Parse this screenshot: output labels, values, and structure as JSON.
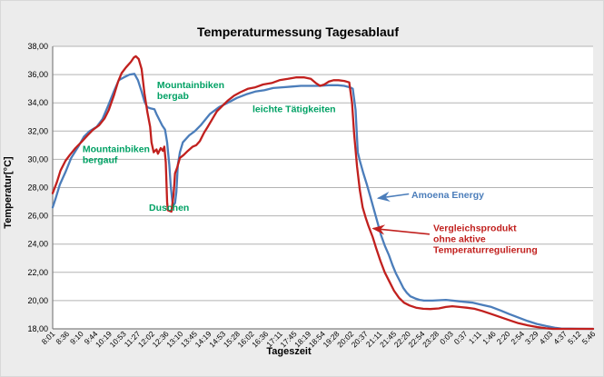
{
  "chart_data": {
    "type": "line",
    "title": "Temperaturmessung Tagesablauf",
    "xlabel": "Tageszeit",
    "ylabel": "Temperatur[°C]",
    "grid": true,
    "legend_position": "inline-annotations",
    "ylim": [
      18,
      38
    ],
    "ytick_step": 2,
    "ytick_labels": [
      "38,00",
      "36,00",
      "34,00",
      "32,00",
      "30,00",
      "28,00",
      "26,00",
      "24,00",
      "22,00",
      "20,00",
      "18,00"
    ],
    "xtick_labels": [
      "8:01",
      "8:36",
      "9:10",
      "9:44",
      "10:19",
      "10:53",
      "11:27",
      "12:02",
      "12:36",
      "13:10",
      "13:45",
      "14:19",
      "14:53",
      "15:28",
      "16:02",
      "16:36",
      "17:11",
      "17:45",
      "18:19",
      "18:54",
      "19:28",
      "20:02",
      "20:37",
      "21:11",
      "21:45",
      "22:20",
      "22:54",
      "23:28",
      "0:03",
      "0:37",
      "1:11",
      "1:46",
      "2:20",
      "2:54",
      "3:29",
      "4:03",
      "4:37",
      "5:12",
      "5:46"
    ],
    "colors": {
      "series_blue": "#4b7dba",
      "series_red": "#c1201e",
      "annotation_green": "#00a164",
      "gridline": "#b3b3b3",
      "axis": "#808080",
      "plot_background": "#ffffff",
      "figure_background": "#ececec"
    },
    "series": [
      {
        "name": "Amoena Energy",
        "color": "#4b7dba",
        "points": [
          [
            0,
            26.6
          ],
          [
            0.2,
            27.2
          ],
          [
            0.5,
            28.2
          ],
          [
            0.9,
            29.1
          ],
          [
            1.3,
            30.1
          ],
          [
            1.8,
            30.9
          ],
          [
            2.2,
            31.6
          ],
          [
            2.6,
            32
          ],
          [
            3.1,
            32.3
          ],
          [
            3.5,
            32.85
          ],
          [
            3.9,
            33.8
          ],
          [
            4.3,
            34.8
          ],
          [
            4.65,
            35.6
          ],
          [
            5,
            35.8
          ],
          [
            5.4,
            36
          ],
          [
            5.75,
            36.05
          ],
          [
            6,
            35.6
          ],
          [
            6.25,
            34.8
          ],
          [
            6.45,
            34.1
          ],
          [
            6.65,
            33.7
          ],
          [
            6.9,
            33.6
          ],
          [
            7.15,
            33.55
          ],
          [
            7.3,
            33.2
          ],
          [
            7.55,
            32.7
          ],
          [
            7.7,
            32.4
          ],
          [
            7.9,
            32.1
          ],
          [
            8.05,
            31.2
          ],
          [
            8.2,
            29.6
          ],
          [
            8.3,
            28.1
          ],
          [
            8.42,
            27
          ],
          [
            8.5,
            26.75
          ],
          [
            8.6,
            26.9
          ],
          [
            8.7,
            27.7
          ],
          [
            8.8,
            29.6
          ],
          [
            8.95,
            30.5
          ],
          [
            9.15,
            31.2
          ],
          [
            9.6,
            31.7
          ],
          [
            10,
            32
          ],
          [
            10.4,
            32.4
          ],
          [
            11.05,
            33.2
          ],
          [
            11.7,
            33.7
          ],
          [
            12.3,
            34
          ],
          [
            12.95,
            34.35
          ],
          [
            13.6,
            34.6
          ],
          [
            14.25,
            34.8
          ],
          [
            14.9,
            34.9
          ],
          [
            15.5,
            35.05
          ],
          [
            16.15,
            35.1
          ],
          [
            16.8,
            35.15
          ],
          [
            17.45,
            35.2
          ],
          [
            18.1,
            35.2
          ],
          [
            18.75,
            35.2
          ],
          [
            19.4,
            35.25
          ],
          [
            20.05,
            35.25
          ],
          [
            20.5,
            35.2
          ],
          [
            20.9,
            35.1
          ],
          [
            21.1,
            35
          ],
          [
            21.3,
            33.5
          ],
          [
            21.45,
            30.5
          ],
          [
            21.6,
            29.9
          ],
          [
            21.85,
            29
          ],
          [
            22.1,
            28.2
          ],
          [
            22.35,
            27.3
          ],
          [
            22.6,
            26.4
          ],
          [
            22.85,
            25.5
          ],
          [
            23.1,
            24.6
          ],
          [
            23.35,
            23.9
          ],
          [
            23.65,
            23.2
          ],
          [
            23.9,
            22.5
          ],
          [
            24.15,
            21.9
          ],
          [
            24.4,
            21.4
          ],
          [
            24.65,
            20.9
          ],
          [
            24.9,
            20.55
          ],
          [
            25.15,
            20.3
          ],
          [
            25.5,
            20.15
          ],
          [
            25.8,
            20.05
          ],
          [
            26.1,
            20
          ],
          [
            26.7,
            20
          ],
          [
            27.65,
            20.05
          ],
          [
            28.6,
            19.95
          ],
          [
            29.55,
            19.85
          ],
          [
            30.2,
            19.7
          ],
          [
            30.85,
            19.55
          ],
          [
            31.5,
            19.3
          ],
          [
            32.1,
            19.05
          ],
          [
            32.75,
            18.8
          ],
          [
            33.4,
            18.55
          ],
          [
            34.05,
            18.35
          ],
          [
            34.7,
            18.2
          ],
          [
            35.3,
            18.08
          ],
          [
            35.75,
            18.02
          ],
          [
            38,
            18
          ]
        ]
      },
      {
        "name": "Vergleichsprodukt ohne aktive Temperaturregulierung",
        "color": "#c1201e",
        "points": [
          [
            0,
            27.6
          ],
          [
            0.3,
            28.4
          ],
          [
            0.55,
            29.2
          ],
          [
            0.9,
            29.9
          ],
          [
            1.2,
            30.3
          ],
          [
            1.6,
            30.8
          ],
          [
            2,
            31.2
          ],
          [
            2.45,
            31.7
          ],
          [
            2.85,
            32.1
          ],
          [
            3.25,
            32.4
          ],
          [
            3.65,
            32.9
          ],
          [
            3.95,
            33.5
          ],
          [
            4.3,
            34.5
          ],
          [
            4.6,
            35.5
          ],
          [
            4.85,
            36.1
          ],
          [
            5.15,
            36.5
          ],
          [
            5.5,
            36.9
          ],
          [
            5.7,
            37.2
          ],
          [
            5.85,
            37.3
          ],
          [
            6.05,
            37.1
          ],
          [
            6.25,
            36.4
          ],
          [
            6.45,
            34.7
          ],
          [
            6.65,
            33.4
          ],
          [
            6.85,
            32.3
          ],
          [
            6.95,
            31.2
          ],
          [
            7.1,
            30.5
          ],
          [
            7.3,
            30.7
          ],
          [
            7.4,
            30.4
          ],
          [
            7.6,
            30.8
          ],
          [
            7.75,
            30.6
          ],
          [
            7.85,
            30.9
          ],
          [
            7.95,
            29.8
          ],
          [
            8.05,
            27
          ],
          [
            8.1,
            26.4
          ],
          [
            8.35,
            26.3
          ],
          [
            8.5,
            27.5
          ],
          [
            8.6,
            29
          ],
          [
            8.75,
            29.4
          ],
          [
            8.95,
            30.1
          ],
          [
            9.2,
            30.3
          ],
          [
            9.5,
            30.6
          ],
          [
            9.85,
            30.9
          ],
          [
            10.1,
            31
          ],
          [
            10.35,
            31.3
          ],
          [
            10.65,
            31.9
          ],
          [
            10.9,
            32.3
          ],
          [
            11.25,
            32.9
          ],
          [
            11.55,
            33.4
          ],
          [
            11.95,
            33.8
          ],
          [
            12.3,
            34.15
          ],
          [
            12.75,
            34.5
          ],
          [
            13.2,
            34.75
          ],
          [
            13.75,
            35
          ],
          [
            14.25,
            35.1
          ],
          [
            14.8,
            35.3
          ],
          [
            15.4,
            35.4
          ],
          [
            15.95,
            35.6
          ],
          [
            16.55,
            35.7
          ],
          [
            17.1,
            35.8
          ],
          [
            17.7,
            35.8
          ],
          [
            18.15,
            35.7
          ],
          [
            18.5,
            35.4
          ],
          [
            18.8,
            35.2
          ],
          [
            19.1,
            35.3
          ],
          [
            19.4,
            35.5
          ],
          [
            19.75,
            35.6
          ],
          [
            20.1,
            35.6
          ],
          [
            20.5,
            35.55
          ],
          [
            20.85,
            35.45
          ],
          [
            21.05,
            34
          ],
          [
            21.2,
            31.8
          ],
          [
            21.4,
            29.5
          ],
          [
            21.6,
            27.8
          ],
          [
            21.8,
            26.6
          ],
          [
            22,
            25.9
          ],
          [
            22.2,
            25.3
          ],
          [
            22.5,
            24.5
          ],
          [
            22.75,
            23.7
          ],
          [
            23.05,
            22.8
          ],
          [
            23.35,
            22
          ],
          [
            23.7,
            21.3
          ],
          [
            24,
            20.7
          ],
          [
            24.35,
            20.2
          ],
          [
            24.7,
            19.85
          ],
          [
            25.1,
            19.65
          ],
          [
            25.55,
            19.5
          ],
          [
            26.05,
            19.42
          ],
          [
            26.55,
            19.4
          ],
          [
            27.15,
            19.45
          ],
          [
            27.65,
            19.55
          ],
          [
            28.1,
            19.6
          ],
          [
            28.6,
            19.55
          ],
          [
            29.1,
            19.5
          ],
          [
            29.65,
            19.42
          ],
          [
            30.2,
            19.27
          ],
          [
            30.85,
            19.05
          ],
          [
            31.5,
            18.82
          ],
          [
            32.15,
            18.6
          ],
          [
            32.75,
            18.4
          ],
          [
            33.4,
            18.25
          ],
          [
            34.05,
            18.13
          ],
          [
            34.7,
            18.04
          ],
          [
            35.15,
            18
          ],
          [
            38,
            18
          ]
        ]
      }
    ],
    "annotations": [
      {
        "id": "mountainbiken-bergauf",
        "lines": [
          "Mountainbiken",
          "bergauf"
        ],
        "color": "#00a164",
        "x": 2.1,
        "t": 30.5,
        "bold": true
      },
      {
        "id": "mountainbiken-bergab",
        "lines": [
          "Mountainbiken",
          "bergab"
        ],
        "color": "#00a164",
        "x": 7.34,
        "t": 35.05,
        "bold": true
      },
      {
        "id": "duschen",
        "lines": [
          "Duschen"
        ],
        "color": "#00a164",
        "x": 6.77,
        "t": 26.35,
        "bold": true
      },
      {
        "id": "leichte-taetigkeiten",
        "lines": [
          "leichte Tätigkeiten"
        ],
        "color": "#00a164",
        "x": 14.05,
        "t": 33.35,
        "bold": true
      },
      {
        "id": "label-amoena-energy",
        "lines": [
          "Amoena Energy"
        ],
        "color": "#4b7dba",
        "x": 25.23,
        "t": 27.25,
        "bold": true,
        "arrow": [
          25.05,
          27.55,
          22.7,
          27.25
        ]
      },
      {
        "id": "label-vergleichsprodukt",
        "lines": [
          "Vergleichsprodukt",
          "ohne aktive",
          "Temperaturregulierung"
        ],
        "color": "#c1201e",
        "x": 26.76,
        "t": 24.9,
        "bold": true,
        "arrow": [
          26.5,
          24.7,
          22.35,
          25.1
        ]
      }
    ]
  }
}
